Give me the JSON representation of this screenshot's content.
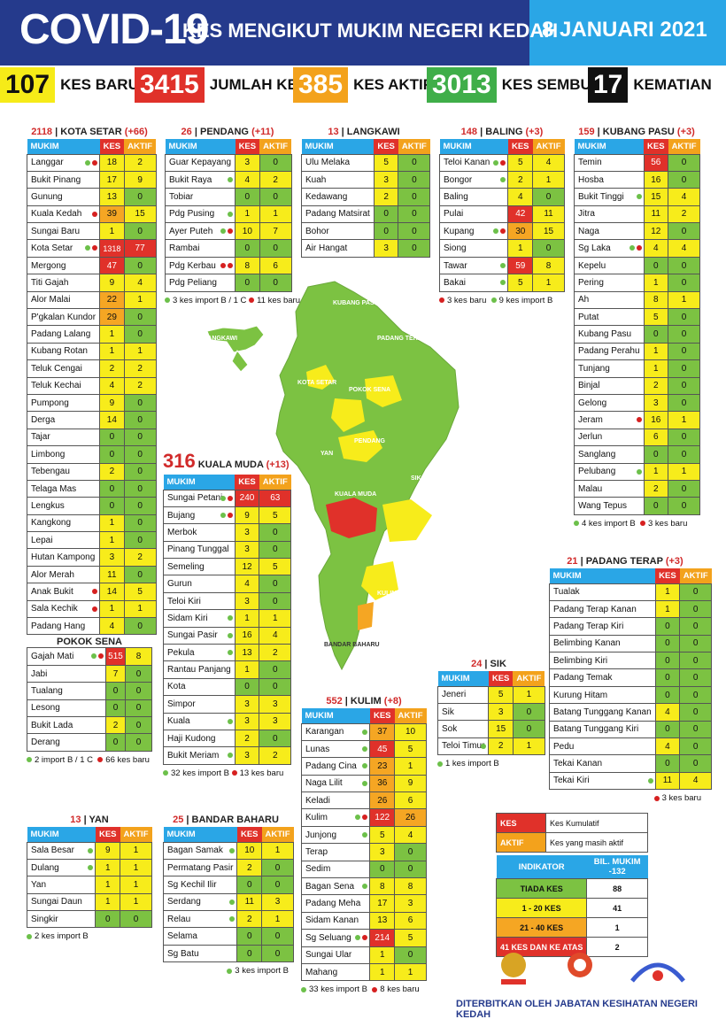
{
  "header": {
    "title": "COVID-19",
    "subtitle": "KES MENGIKUT MUKIM NEGERI KEDAH",
    "date": "8 JANUARI 2021"
  },
  "stats": [
    {
      "n": "107",
      "l": "KES BARU",
      "bg": "#f6eb18",
      "tc": "#111"
    },
    {
      "n": "3415",
      "l": "JUMLAH KES",
      "bg": "#e0312a",
      "tc": "#fff"
    },
    {
      "n": "385",
      "l": "KES AKTIF",
      "bg": "#f3a21c",
      "tc": "#fff"
    },
    {
      "n": "3013",
      "l": "KES SEMBUH",
      "bg": "#3fae49",
      "tc": "#fff"
    },
    {
      "n": "17",
      "l": "KEMATIAN",
      "bg": "#111",
      "tc": "#fff"
    }
  ],
  "cols": {
    "mukim": "MUKIM",
    "kes": "KES",
    "aktif": "AKTIF"
  },
  "colors": {
    "green": "#7cc242",
    "yellow": "#f7ec1b",
    "orange": "#f5a623",
    "red": "#e0312a"
  },
  "kota_setar": {
    "num": "2118",
    "name": "KOTA SETAR",
    "delta": "(+66)",
    "note1": "2 import B / 1 C",
    "note2": "66 kes baru"
  },
  "pokok_sena": {
    "name": "POKOK SENA"
  },
  "pendang": {
    "num": "26",
    "name": "PENDANG",
    "delta": "(+11)",
    "note1": "3 kes import B / 1 C",
    "note2": "11 kes baru"
  },
  "langkawi": {
    "num": "13",
    "name": "LANGKAWI"
  },
  "baling": {
    "num": "148",
    "name": "BALING",
    "delta": "(+3)",
    "note1": "3 kes baru",
    "note2": "9 kes import B"
  },
  "kubang_pasu": {
    "num": "159",
    "name": "KUBANG PASU",
    "delta": "(+3)",
    "note1": "4 kes import B",
    "note2": "3 kes baru"
  },
  "kuala_muda": {
    "num": "316",
    "name": "KUALA MUDA",
    "delta": "(+13)",
    "note1": "32 kes import B",
    "note2": "13 kes baru"
  },
  "padang_terap": {
    "num": "21",
    "name": "PADANG TERAP",
    "delta": "(+3)",
    "note2": "3 kes baru"
  },
  "sik": {
    "num": "24",
    "name": "SIK",
    "note1": "1 kes import B"
  },
  "kulim": {
    "num": "552",
    "name": "KULIM",
    "delta": "(+8)",
    "note1": "33 kes import B",
    "note2": "8 kes baru"
  },
  "yan": {
    "num": "13",
    "name": "YAN",
    "note1": "2 kes import B"
  },
  "bandar_baharu": {
    "num": "25",
    "name": "BANDAR BAHARU",
    "note1": "3 kes import B"
  },
  "tables": {
    "ks": [
      [
        "Langgar",
        "18",
        "2",
        "gr"
      ],
      [
        "Bukit Pinang",
        "17",
        "9",
        ""
      ],
      [
        "Gunung",
        "13",
        "0",
        ""
      ],
      [
        "Kuala Kedah",
        "39",
        "15",
        "r"
      ],
      [
        "Sungai Baru",
        "1",
        "0",
        ""
      ],
      [
        "Kota Setar",
        "1318",
        "77",
        "gr"
      ],
      [
        "Mergong",
        "47",
        "0",
        ""
      ],
      [
        "Titi Gajah",
        "9",
        "4",
        ""
      ],
      [
        "Alor Malai",
        "22",
        "1",
        ""
      ],
      [
        "P'gkalan Kundor",
        "29",
        "0",
        ""
      ],
      [
        "Padang Lalang",
        "1",
        "0",
        ""
      ],
      [
        "Kubang Rotan",
        "1",
        "1",
        ""
      ],
      [
        "Teluk Cengai",
        "2",
        "2",
        ""
      ],
      [
        "Teluk Kechai",
        "4",
        "2",
        ""
      ],
      [
        "Pumpong",
        "9",
        "0",
        ""
      ],
      [
        "Derga",
        "14",
        "0",
        ""
      ],
      [
        "Tajar",
        "0",
        "0",
        ""
      ],
      [
        "Limbong",
        "0",
        "0",
        ""
      ],
      [
        "Tebengau",
        "2",
        "0",
        ""
      ],
      [
        "Telaga Mas",
        "0",
        "0",
        ""
      ],
      [
        "Lengkus",
        "0",
        "0",
        ""
      ],
      [
        "Kangkong",
        "1",
        "0",
        ""
      ],
      [
        "Lepai",
        "1",
        "0",
        ""
      ],
      [
        "Hutan Kampong",
        "3",
        "2",
        ""
      ],
      [
        "Alor Merah",
        "11",
        "0",
        ""
      ],
      [
        "Anak Bukit",
        "14",
        "5",
        "r"
      ],
      [
        "Sala Kechik",
        "1",
        "1",
        "r"
      ],
      [
        "Padang Hang",
        "4",
        "0",
        ""
      ]
    ],
    "ps": [
      [
        "Gajah Mati",
        "515",
        "8",
        "gr"
      ],
      [
        "Jabi",
        "7",
        "0",
        ""
      ],
      [
        "Tualang",
        "0",
        "0",
        ""
      ],
      [
        "Lesong",
        "0",
        "0",
        ""
      ],
      [
        "Bukit Lada",
        "2",
        "0",
        ""
      ],
      [
        "Derang",
        "0",
        "0",
        ""
      ]
    ],
    "pd": [
      [
        "Guar Kepayang",
        "3",
        "0",
        ""
      ],
      [
        "Bukit Raya",
        "4",
        "2",
        "g"
      ],
      [
        "Tobiar",
        "0",
        "0",
        ""
      ],
      [
        "Pdg Pusing",
        "1",
        "1",
        "g"
      ],
      [
        "Ayer Puteh",
        "10",
        "7",
        "gr"
      ],
      [
        "Rambai",
        "0",
        "0",
        ""
      ],
      [
        "Pdg Kerbau",
        "8",
        "6",
        "rr"
      ],
      [
        "Pdg Peliang",
        "0",
        "0",
        ""
      ]
    ],
    "lk": [
      [
        "Ulu Melaka",
        "5",
        "0",
        ""
      ],
      [
        "Kuah",
        "3",
        "0",
        ""
      ],
      [
        "Kedawang",
        "2",
        "0",
        ""
      ],
      [
        "Padang Matsirat",
        "0",
        "0",
        ""
      ],
      [
        "Bohor",
        "0",
        "0",
        ""
      ],
      [
        "Air Hangat",
        "3",
        "0",
        ""
      ]
    ],
    "bl": [
      [
        "Teloi Kanan",
        "5",
        "4",
        "gr"
      ],
      [
        "Bongor",
        "2",
        "1",
        "g"
      ],
      [
        "Baling",
        "4",
        "0",
        ""
      ],
      [
        "Pulai",
        "42",
        "11",
        ""
      ],
      [
        "Kupang",
        "30",
        "15",
        "gr"
      ],
      [
        "Siong",
        "1",
        "0",
        ""
      ],
      [
        "Tawar",
        "59",
        "8",
        "g"
      ],
      [
        "Bakai",
        "5",
        "1",
        "g"
      ]
    ],
    "kp": [
      [
        "Temin",
        "56",
        "0",
        ""
      ],
      [
        "Hosba",
        "16",
        "0",
        ""
      ],
      [
        "Bukit Tinggi",
        "15",
        "4",
        "g"
      ],
      [
        "Jitra",
        "11",
        "2",
        ""
      ],
      [
        "Naga",
        "12",
        "0",
        ""
      ],
      [
        "Sg Laka",
        "4",
        "4",
        "gr"
      ],
      [
        "Kepelu",
        "0",
        "0",
        ""
      ],
      [
        "Pering",
        "1",
        "0",
        ""
      ],
      [
        "Ah",
        "8",
        "1",
        ""
      ],
      [
        "Putat",
        "5",
        "0",
        ""
      ],
      [
        "Kubang Pasu",
        "0",
        "0",
        ""
      ],
      [
        "Padang Perahu",
        "1",
        "0",
        ""
      ],
      [
        "Tunjang",
        "1",
        "0",
        ""
      ],
      [
        "Binjal",
        "2",
        "0",
        ""
      ],
      [
        "Gelong",
        "3",
        "0",
        ""
      ],
      [
        "Jeram",
        "16",
        "1",
        "r"
      ],
      [
        "Jerlun",
        "6",
        "0",
        ""
      ],
      [
        "Sanglang",
        "0",
        "0",
        ""
      ],
      [
        "Pelubang",
        "1",
        "1",
        "g"
      ],
      [
        "Malau",
        "2",
        "0",
        ""
      ],
      [
        "Wang Tepus",
        "0",
        "0",
        ""
      ]
    ],
    "km": [
      [
        "Sungai Petani",
        "240",
        "63",
        "gr"
      ],
      [
        "Bujang",
        "9",
        "5",
        "gr"
      ],
      [
        "Merbok",
        "3",
        "0",
        ""
      ],
      [
        "Pinang Tunggal",
        "3",
        "0",
        ""
      ],
      [
        "Semeling",
        "12",
        "5",
        ""
      ],
      [
        "Gurun",
        "4",
        "0",
        ""
      ],
      [
        "Teloi Kiri",
        "3",
        "0",
        ""
      ],
      [
        "Sidam Kiri",
        "1",
        "1",
        "g"
      ],
      [
        "Sungai Pasir",
        "16",
        "4",
        "g"
      ],
      [
        "Pekula",
        "13",
        "2",
        "g"
      ],
      [
        "Rantau Panjang",
        "1",
        "0",
        ""
      ],
      [
        "Kota",
        "0",
        "0",
        ""
      ],
      [
        "Simpor",
        "3",
        "3",
        ""
      ],
      [
        "Kuala",
        "3",
        "3",
        "g"
      ],
      [
        "Haji Kudong",
        "2",
        "0",
        ""
      ],
      [
        "Bukit Meriam",
        "3",
        "2",
        "g"
      ]
    ],
    "pt": [
      [
        "Tualak",
        "1",
        "0",
        ""
      ],
      [
        "Padang Terap Kanan",
        "1",
        "0",
        ""
      ],
      [
        "Padang Terap Kiri",
        "0",
        "0",
        ""
      ],
      [
        "Belimbing Kanan",
        "0",
        "0",
        ""
      ],
      [
        "Belimbing Kiri",
        "0",
        "0",
        ""
      ],
      [
        "Padang Temak",
        "0",
        "0",
        ""
      ],
      [
        "Kurung Hitam",
        "0",
        "0",
        ""
      ],
      [
        "Batang Tunggang Kanan",
        "4",
        "0",
        ""
      ],
      [
        "Batang Tunggang Kiri",
        "0",
        "0",
        ""
      ],
      [
        "Pedu",
        "4",
        "0",
        ""
      ],
      [
        "Tekai Kanan",
        "0",
        "0",
        ""
      ],
      [
        "Tekai Kiri",
        "11",
        "4",
        "g"
      ]
    ],
    "sk": [
      [
        "Jeneri",
        "5",
        "1",
        ""
      ],
      [
        "Sik",
        "3",
        "0",
        ""
      ],
      [
        "Sok",
        "15",
        "0",
        ""
      ],
      [
        "Teloi Timur",
        "2",
        "1",
        "g"
      ]
    ],
    "kl": [
      [
        "Karangan",
        "37",
        "10",
        "g"
      ],
      [
        "Lunas",
        "45",
        "5",
        "g"
      ],
      [
        "Padang Cina",
        "23",
        "1",
        "g"
      ],
      [
        "Naga Lilit",
        "36",
        "9",
        "g"
      ],
      [
        "Keladi",
        "26",
        "6",
        ""
      ],
      [
        "Kulim",
        "122",
        "26",
        "gr"
      ],
      [
        "Junjong",
        "5",
        "4",
        "g"
      ],
      [
        "Terap",
        "3",
        "0",
        ""
      ],
      [
        "Sedim",
        "0",
        "0",
        ""
      ],
      [
        "Bagan Sena",
        "8",
        "8",
        "g"
      ],
      [
        "Padang Meha",
        "17",
        "3",
        ""
      ],
      [
        "Sidam Kanan",
        "13",
        "6",
        ""
      ],
      [
        "Sg Seluang",
        "214",
        "5",
        "gr"
      ],
      [
        "Sungai Ular",
        "1",
        "0",
        ""
      ],
      [
        "Mahang",
        "1",
        "1",
        ""
      ]
    ],
    "yn": [
      [
        "Sala Besar",
        "9",
        "1",
        "g"
      ],
      [
        "Dulang",
        "1",
        "1",
        "g"
      ],
      [
        "Yan",
        "1",
        "1",
        ""
      ],
      [
        "Sungai Daun",
        "1",
        "1",
        ""
      ],
      [
        "Singkir",
        "0",
        "0",
        ""
      ]
    ],
    "bb": [
      [
        "Bagan Samak",
        "10",
        "1",
        "g"
      ],
      [
        "Permatang Pasir",
        "2",
        "0",
        ""
      ],
      [
        "Sg Kechil Ilir",
        "0",
        "0",
        ""
      ],
      [
        "Serdang",
        "11",
        "3",
        "g"
      ],
      [
        "Relau",
        "2",
        "1",
        "g"
      ],
      [
        "Selama",
        "0",
        "0",
        ""
      ],
      [
        "Sg Batu",
        "0",
        "0",
        ""
      ]
    ]
  },
  "legend": [
    [
      "KES",
      "Kes Kumulatif"
    ],
    [
      "AKTIF",
      "Kes yang masih aktif"
    ]
  ],
  "indicator": {
    "h1": "INDIKATOR",
    "h2": "BIL. MUKIM -132",
    "rows": [
      [
        "TIADA KES",
        "88"
      ],
      [
        "1 - 20 KES",
        "41"
      ],
      [
        "21 - 40 KES",
        "1"
      ],
      [
        "41 KES DAN KE ATAS",
        "2"
      ]
    ]
  },
  "map": {
    "labels": [
      "KUBANG PASU",
      "PADANG TERAP",
      "LANGKAWI",
      "KOTA SETAR",
      "POKOK SENA",
      "PENDANG",
      "YAN",
      "SIK",
      "KUALA MUDA",
      "BALING",
      "KULIM",
      "BANDAR BAHARU"
    ]
  },
  "footer": "DITERBITKAN OLEH JABATAN KESIHATAN NEGERI KEDAH"
}
